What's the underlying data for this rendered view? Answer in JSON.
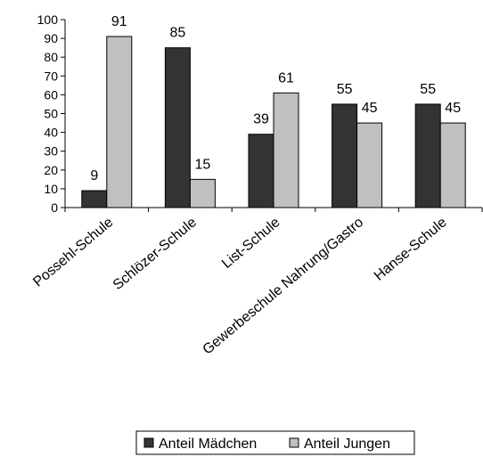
{
  "chart_data": {
    "type": "bar",
    "categories": [
      "Possehl-Schule",
      "Schlözer-Schule",
      "List-Schule",
      "Gewerbeschule Nahrung/Gastro",
      "Hanse-Schule"
    ],
    "series": [
      {
        "name": "Anteil Mädchen",
        "values": [
          9,
          85,
          39,
          55,
          55
        ],
        "color": "#333333"
      },
      {
        "name": "Anteil Jungen",
        "values": [
          91,
          15,
          61,
          45,
          45
        ],
        "color": "#c0c0c0"
      }
    ],
    "data_labels": [
      [
        "9",
        "85",
        "39",
        "55",
        "55"
      ],
      [
        "91",
        "15",
        "61",
        "45",
        "45"
      ]
    ],
    "ylim": [
      0,
      100
    ],
    "yticks": [
      0,
      10,
      20,
      30,
      40,
      50,
      60,
      70,
      80,
      90,
      100
    ],
    "grid": false,
    "legend_position": "bottom",
    "title": "",
    "xlabel": "",
    "ylabel": ""
  }
}
